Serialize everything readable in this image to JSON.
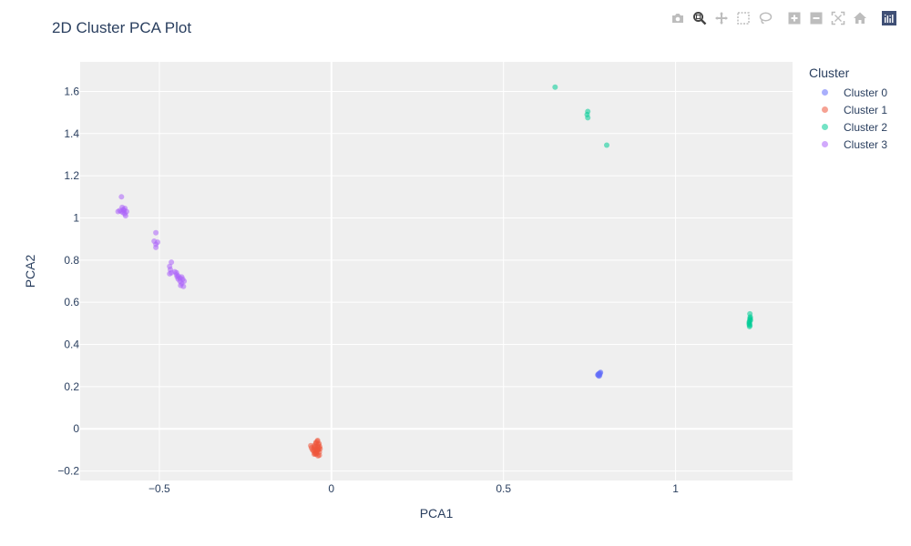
{
  "chart_data": {
    "type": "scatter",
    "title": "2D Cluster PCA Plot",
    "xlabel": "PCA1",
    "ylabel": "PCA2",
    "xlim": [
      -0.73,
      1.34
    ],
    "ylim": [
      -0.245,
      1.74
    ],
    "xticks": [
      -0.5,
      0,
      0.5,
      1
    ],
    "xtick_labels": [
      "−0.5",
      "0",
      "0.5",
      "1"
    ],
    "yticks": [
      -0.2,
      0,
      0.2,
      0.4,
      0.6,
      0.8,
      1,
      1.2,
      1.4,
      1.6
    ],
    "ytick_labels": [
      "−0.2",
      "0",
      "0.2",
      "0.4",
      "0.6",
      "0.8",
      "1",
      "1.2",
      "1.4",
      "1.6"
    ],
    "grid": true,
    "legend": {
      "title": "Cluster",
      "placement": "right"
    },
    "series": [
      {
        "name": "Cluster 0",
        "color": "#636efa",
        "points": [
          [
            0.775,
            0.255
          ],
          [
            0.778,
            0.262
          ],
          [
            0.78,
            0.258
          ],
          [
            0.777,
            0.25
          ],
          [
            0.781,
            0.265
          ],
          [
            0.776,
            0.26
          ],
          [
            0.779,
            0.252
          ],
          [
            0.782,
            0.268
          ],
          [
            0.774,
            0.256
          ]
        ]
      },
      {
        "name": "Cluster 1",
        "color": "#ef553b",
        "points": [
          [
            -0.06,
            -0.08
          ],
          [
            -0.05,
            -0.09
          ],
          [
            -0.045,
            -0.07
          ],
          [
            -0.04,
            -0.1
          ],
          [
            -0.035,
            -0.11
          ],
          [
            -0.05,
            -0.12
          ],
          [
            -0.04,
            -0.085
          ],
          [
            -0.045,
            -0.095
          ],
          [
            -0.038,
            -0.075
          ],
          [
            -0.042,
            -0.105
          ],
          [
            -0.048,
            -0.115
          ],
          [
            -0.035,
            -0.125
          ],
          [
            -0.055,
            -0.1
          ],
          [
            -0.045,
            -0.065
          ],
          [
            -0.04,
            -0.055
          ],
          [
            -0.05,
            -0.08
          ],
          [
            -0.037,
            -0.09
          ],
          [
            -0.052,
            -0.105
          ],
          [
            -0.043,
            -0.118
          ],
          [
            -0.033,
            -0.095
          ],
          [
            -0.047,
            -0.085
          ],
          [
            -0.039,
            -0.128
          ],
          [
            -0.041,
            -0.06
          ],
          [
            -0.058,
            -0.09
          ],
          [
            -0.036,
            -0.07
          ],
          [
            -0.049,
            -0.1
          ],
          [
            -0.044,
            -0.11
          ],
          [
            -0.034,
            -0.085
          ],
          [
            -0.046,
            -0.12
          ],
          [
            -0.038,
            -0.1
          ]
        ]
      },
      {
        "name": "Cluster 2",
        "color": "#00cc96",
        "points": [
          [
            0.65,
            1.62
          ],
          [
            0.745,
            1.505
          ],
          [
            0.743,
            1.49
          ],
          [
            0.745,
            1.475
          ],
          [
            0.8,
            1.345
          ],
          [
            1.215,
            0.51
          ],
          [
            1.216,
            0.52
          ],
          [
            1.214,
            0.495
          ],
          [
            1.217,
            0.53
          ],
          [
            1.215,
            0.485
          ],
          [
            1.216,
            0.545
          ],
          [
            1.214,
            0.505
          ],
          [
            1.218,
            0.515
          ],
          [
            1.215,
            0.5
          ],
          [
            1.216,
            0.49
          ],
          [
            1.217,
            0.525
          ]
        ]
      },
      {
        "name": "Cluster 3",
        "color": "#ab63fa",
        "points": [
          [
            -0.61,
            1.1
          ],
          [
            -0.61,
            1.03
          ],
          [
            -0.605,
            1.04
          ],
          [
            -0.6,
            1.02
          ],
          [
            -0.615,
            1.035
          ],
          [
            -0.605,
            1.025
          ],
          [
            -0.6,
            1.045
          ],
          [
            -0.598,
            1.01
          ],
          [
            -0.608,
            1.05
          ],
          [
            -0.62,
            1.03
          ],
          [
            -0.602,
            1.035
          ],
          [
            -0.595,
            1.03
          ],
          [
            -0.51,
            0.93
          ],
          [
            -0.515,
            0.89
          ],
          [
            -0.51,
            0.875
          ],
          [
            -0.51,
            0.86
          ],
          [
            -0.505,
            0.885
          ],
          [
            -0.465,
            0.79
          ],
          [
            -0.47,
            0.77
          ],
          [
            -0.468,
            0.755
          ],
          [
            -0.465,
            0.74
          ],
          [
            -0.47,
            0.735
          ],
          [
            -0.455,
            0.745
          ],
          [
            -0.45,
            0.73
          ],
          [
            -0.445,
            0.71
          ],
          [
            -0.44,
            0.7
          ],
          [
            -0.435,
            0.69
          ],
          [
            -0.43,
            0.675
          ],
          [
            -0.445,
            0.725
          ],
          [
            -0.435,
            0.72
          ],
          [
            -0.44,
            0.715
          ],
          [
            -0.45,
            0.74
          ],
          [
            -0.428,
            0.7
          ],
          [
            -0.438,
            0.68
          ],
          [
            -0.448,
            0.72
          ],
          [
            -0.432,
            0.71
          ]
        ]
      }
    ]
  },
  "modebar": {
    "buttons": [
      {
        "name": "camera-icon",
        "group": 0
      },
      {
        "name": "zoom-icon",
        "group": 0,
        "active": true
      },
      {
        "name": "pan-icon",
        "group": 0
      },
      {
        "name": "box-select-icon",
        "group": 0
      },
      {
        "name": "lasso-select-icon",
        "group": 0
      },
      {
        "name": "zoom-in-icon",
        "group": 1
      },
      {
        "name": "zoom-out-icon",
        "group": 1
      },
      {
        "name": "autoscale-icon",
        "group": 1
      },
      {
        "name": "reset-axes-icon",
        "group": 1
      },
      {
        "name": "plotly-logo-icon",
        "group": 2
      }
    ]
  }
}
